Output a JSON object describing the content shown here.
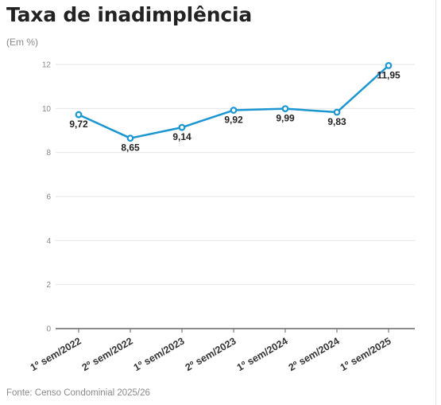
{
  "title": "Taxa de inadimplência",
  "subtitle": "(Em %)",
  "source": "Fonte: Censo Condominial 2025/26",
  "chart_data": {
    "type": "line",
    "categories": [
      "1º sem/2022",
      "2º sem/2022",
      "1º sem/2023",
      "2º sem/2023",
      "1º sem/2024",
      "2º sem/2024",
      "1º sem/2025"
    ],
    "values": [
      9.72,
      8.65,
      9.14,
      9.92,
      9.99,
      9.83,
      11.95
    ],
    "data_labels": [
      "9,72",
      "8,65",
      "9,14",
      "9,92",
      "9,99",
      "9,83",
      "11,95"
    ],
    "yticks": [
      0,
      2,
      4,
      6,
      8,
      10,
      12
    ],
    "ylim": [
      0,
      12
    ],
    "grid": true,
    "line_color": "#1a96d2",
    "grid_color": "#e6e6e6",
    "axis_color": "#666666"
  }
}
